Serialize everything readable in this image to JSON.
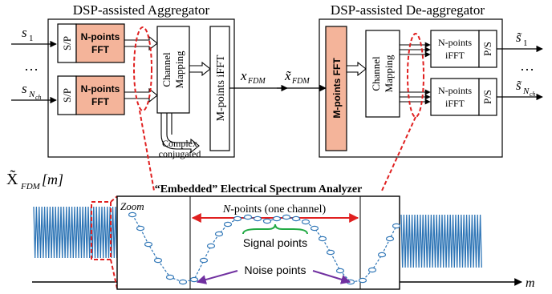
{
  "aggregator": {
    "title": "DSP-assisted Aggregator",
    "inputs": [
      "s",
      "1",
      "s",
      "N",
      "ch"
    ],
    "sp_label": "S/P",
    "fft_lines": [
      "N-points",
      "FFT"
    ],
    "channel_mapping_lines": [
      "Channel",
      "Mapping"
    ],
    "ifft_label": "M-points iFFT",
    "output_main": "x",
    "output_sub": "FDM",
    "complex_lines": [
      "Complex",
      "conjugated"
    ],
    "dots": "…"
  },
  "deaggregator": {
    "title": "DSP-assisted De-aggregator",
    "input_main": "x̃",
    "input_sub": "FDM",
    "fft_label": "M-points FFT",
    "channel_mapping_lines": [
      "Channel",
      "Mapping"
    ],
    "ifft_lines": [
      "N-points",
      "iFFT"
    ],
    "ps_label": "P/S",
    "outputs": [
      "s̃",
      "1",
      "s̃",
      "N",
      "ch"
    ],
    "dots": "…"
  },
  "spectrum": {
    "title": "“Embedded” Electrical Spectrum Analyzer",
    "ylabel_main": "X̃",
    "ylabel_sub": "FDM",
    "ylabel_arg": "[m]",
    "zoom_label": "Zoom",
    "npoints_label_italic": "N",
    "npoints_label_rest": "-points (one channel)",
    "signal_label": "Signal points",
    "noise_label": "Noise points",
    "xaxis_label": "m"
  },
  "colors": {
    "fft_fill": "#f4b49a",
    "red": "#e02020",
    "spectrum_blue": "#2e75b6",
    "green": "#22aa44",
    "purple": "#7030a0"
  }
}
